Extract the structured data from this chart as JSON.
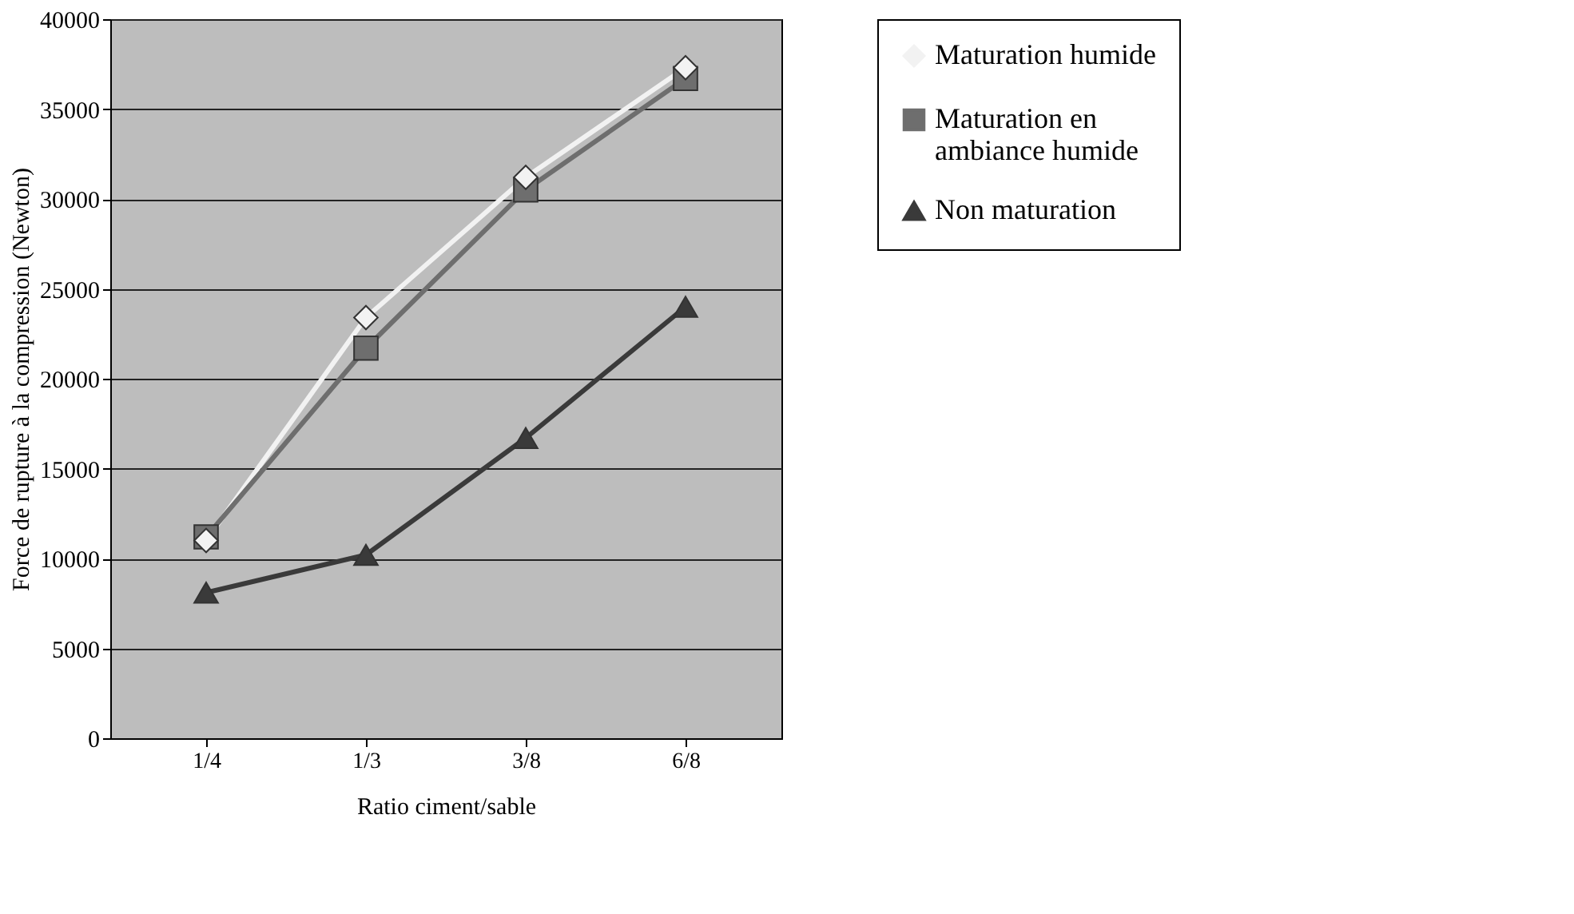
{
  "chart_data": {
    "type": "line",
    "xlabel": "Ratio ciment/sable",
    "ylabel": "Force de rupture à la compression (Newton)",
    "categories": [
      "1/4",
      "1/3",
      "3/8",
      "6/8"
    ],
    "series": [
      {
        "name": "Maturation humide",
        "color": "#f2f2f2",
        "marker": "diamond",
        "values": [
          11000,
          23400,
          31200,
          37300
        ]
      },
      {
        "name": "Maturation en\nambiance humide",
        "color": "#6e6e6e",
        "marker": "square",
        "values": [
          11200,
          21700,
          30500,
          36700
        ]
      },
      {
        "name": "Non maturation",
        "color": "#3a3a3a",
        "marker": "triangle",
        "values": [
          8100,
          10200,
          16700,
          24000
        ]
      }
    ],
    "ylim": [
      0,
      40000
    ],
    "yticks": [
      0,
      5000,
      10000,
      15000,
      20000,
      25000,
      30000,
      35000,
      40000
    ],
    "grid": "y",
    "legend": "right",
    "line_style": "solid"
  }
}
